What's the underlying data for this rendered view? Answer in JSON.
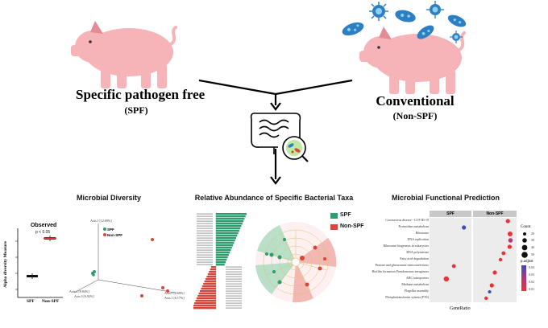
{
  "colors": {
    "pig_fill": "#f6b3b8",
    "pig_dark": "#e58b93",
    "microbe_blue": "#2d7fc4",
    "microbe_light": "#8fd1f1",
    "spf_green": "#2e9c6e",
    "nonspf_red": "#d8463b",
    "panel_gray": "#c8c8c8"
  },
  "pigs": {
    "left": {
      "name": "Specific pathogen free",
      "abbr": "(SPF)"
    },
    "right": {
      "name": "Conventional",
      "abbr": "(Non-SPF)"
    }
  },
  "sections": {
    "diversity": "Microbial Diversity",
    "abundance": "Relative Abundance of Specific Bacterial Taxa",
    "functional": "Microbial Functional Prediction"
  },
  "alpha": {
    "title": "Observed",
    "pvalue": "p < 0.05",
    "ylabel": "Alpha diversity Measure",
    "groups": [
      "SPF",
      "Non-SPF"
    ]
  },
  "pcoa": {
    "legend": [
      "SPF",
      "Non-SPF"
    ],
    "axis_labels": [
      "Axis.1 [12.69%]",
      "Axis.2 [8.84%]",
      "Axis.3 [6.92%]",
      "Axis.1 [8.69%]",
      "Axis.1 [6.17%]"
    ]
  },
  "lefse": {
    "legend": [
      "SPF",
      "Non-SPF"
    ]
  },
  "dotplot": {
    "facets": [
      "SPF",
      "Non-SPF"
    ],
    "xlabel": "GeneRatio",
    "pathways": [
      "Coronavirus disease - COVID-19",
      "Pyrimidine metabolism",
      "Ribosome",
      "DNA replication",
      "Ribosome biogenesis in eukaryotes",
      "RNA polymerase",
      "Fatty acid degradation",
      "Pentose and glucuronate interconversions",
      "Biofilm formation Pseudomonas aeruginosa",
      "ABC transporters",
      "Methane metabolism",
      "Flagellar assembly",
      "Phosphotransferase system (PTS)"
    ],
    "legend_count_title": "Count",
    "legend_counts": [
      "20",
      "30",
      "40",
      "50"
    ],
    "legend_padj_title": "p.adjust",
    "legend_padj": [
      "0.04",
      "0.03",
      "0.02",
      "0.01"
    ]
  }
}
